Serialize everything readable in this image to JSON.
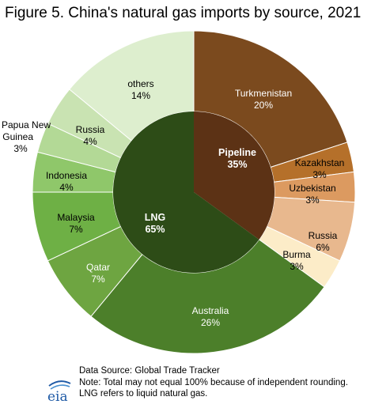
{
  "title": "Figure 5. China's natural gas imports by source, 2021",
  "chart_data": {
    "type": "pie",
    "subtype": "double-donut",
    "inner_ring": [
      {
        "name": "Pipeline",
        "label": "35%",
        "value": 35,
        "color": "#5c3215"
      },
      {
        "name": "LNG",
        "label": "65%",
        "value": 65,
        "color": "#2d4c17"
      }
    ],
    "outer_ring": [
      {
        "name": "Turkmenistan",
        "label": "20%",
        "value": 20,
        "group": "Pipeline",
        "color": "#7b4a1e"
      },
      {
        "name": "Kazakhstan",
        "label": "3%",
        "value": 3,
        "group": "Pipeline",
        "color": "#b5702a"
      },
      {
        "name": "Uzbekistan",
        "label": "3%",
        "value": 3,
        "group": "Pipeline",
        "color": "#dc9a60"
      },
      {
        "name": "Russia",
        "label": "6%",
        "value": 6,
        "group": "Pipeline",
        "color": "#e8b88e"
      },
      {
        "name": "Burma",
        "label": "3%",
        "value": 3,
        "group": "Pipeline",
        "color": "#fcecc8"
      },
      {
        "name": "Australia",
        "label": "26%",
        "value": 26,
        "group": "LNG",
        "color": "#4c7f2a"
      },
      {
        "name": "Qatar",
        "label": "7%",
        "value": 7,
        "group": "LNG",
        "color": "#6ea541"
      },
      {
        "name": "Malaysia",
        "label": "7%",
        "value": 7,
        "group": "LNG",
        "color": "#6eb045"
      },
      {
        "name": "Indonesia",
        "label": "4%",
        "value": 4,
        "group": "LNG",
        "color": "#8fc76a"
      },
      {
        "name": "Papua New Guinea",
        "label": "3%",
        "value": 3,
        "group": "LNG",
        "color": "#b3d996"
      },
      {
        "name": "Russia",
        "label": "4%",
        "value": 4,
        "group": "LNG",
        "color": "#c9e3b2"
      },
      {
        "name": "others",
        "label": "14%",
        "value": 14,
        "group": "LNG",
        "color": "#ddeece"
      }
    ]
  },
  "footer": {
    "source": "Data Source: Global Trade Tracker",
    "note": "Note: Total may not equal 100% because of independent rounding.",
    "lng_note": "LNG refers to liquid natural gas."
  },
  "logo_text": "eia"
}
